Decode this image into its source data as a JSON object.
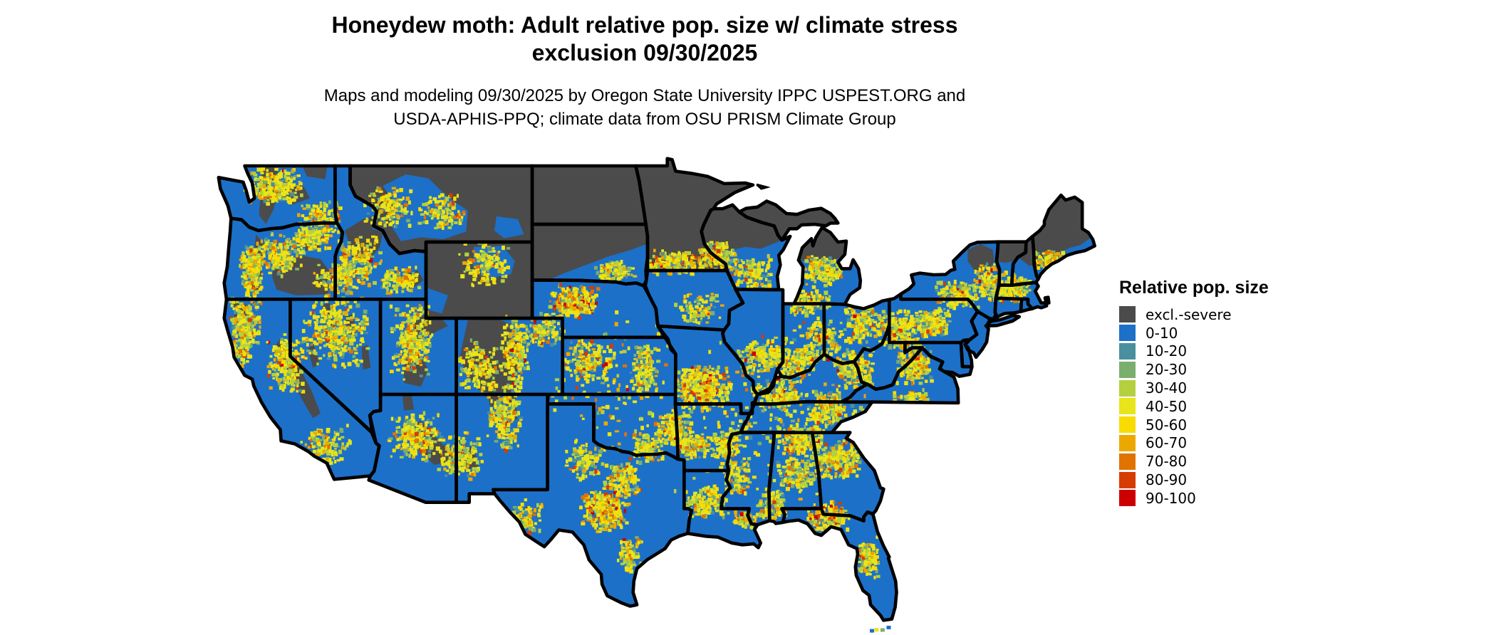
{
  "title_block": {
    "line1": "Honeydew moth: Adult relative pop. size w/ climate stress",
    "line2": "exclusion 09/30/2025"
  },
  "subtitle_block": {
    "line1": "Maps and modeling 09/30/2025 by Oregon State University IPPC USPEST.ORG and",
    "line2": "USDA-APHIS-PPQ; climate data from OSU PRISM Climate Group"
  },
  "legend": {
    "title": "Relative pop. size",
    "items": [
      {
        "label": "excl.-severe",
        "color": "#4B4B4B"
      },
      {
        "label": "0-10",
        "color": "#1C70C8"
      },
      {
        "label": "10-20",
        "color": "#4A8F9E"
      },
      {
        "label": "20-30",
        "color": "#7BAE6E"
      },
      {
        "label": "30-40",
        "color": "#B4D03F"
      },
      {
        "label": "40-50",
        "color": "#E8E51A"
      },
      {
        "label": "50-60",
        "color": "#F8DC00"
      },
      {
        "label": "60-70",
        "color": "#ECA800"
      },
      {
        "label": "70-80",
        "color": "#E17300"
      },
      {
        "label": "80-90",
        "color": "#D53C00"
      },
      {
        "label": "90-100",
        "color": "#CC0000"
      }
    ]
  },
  "map": {
    "region": "Conterminous United States",
    "background_color": "#FFFFFF",
    "land_color": "#1C70C8",
    "exclusion_color": "#4B4B4B",
    "border_color": "#000000",
    "speckle_palette": {
      "normal": [
        {
          "color": "#4A8F9E",
          "weight": 0.05
        },
        {
          "color": "#7BAE6E",
          "weight": 0.08
        },
        {
          "color": "#B4D03F",
          "weight": 0.2
        },
        {
          "color": "#E8E51A",
          "weight": 0.34
        },
        {
          "color": "#F8DC00",
          "weight": 0.15
        },
        {
          "color": "#ECA800",
          "weight": 0.1
        },
        {
          "color": "#E17300",
          "weight": 0.05
        },
        {
          "color": "#D53C00",
          "weight": 0.02
        },
        {
          "color": "#CC0000",
          "weight": 0.01
        }
      ],
      "hot": [
        {
          "color": "#4A8F9E",
          "weight": 0.03
        },
        {
          "color": "#7BAE6E",
          "weight": 0.06
        },
        {
          "color": "#B4D03F",
          "weight": 0.16
        },
        {
          "color": "#E8E51A",
          "weight": 0.28
        },
        {
          "color": "#F8DC00",
          "weight": 0.16
        },
        {
          "color": "#ECA800",
          "weight": 0.14
        },
        {
          "color": "#E17300",
          "weight": 0.09
        },
        {
          "color": "#D53C00",
          "weight": 0.05
        },
        {
          "color": "#CC0000",
          "weight": 0.03
        }
      ]
    }
  }
}
